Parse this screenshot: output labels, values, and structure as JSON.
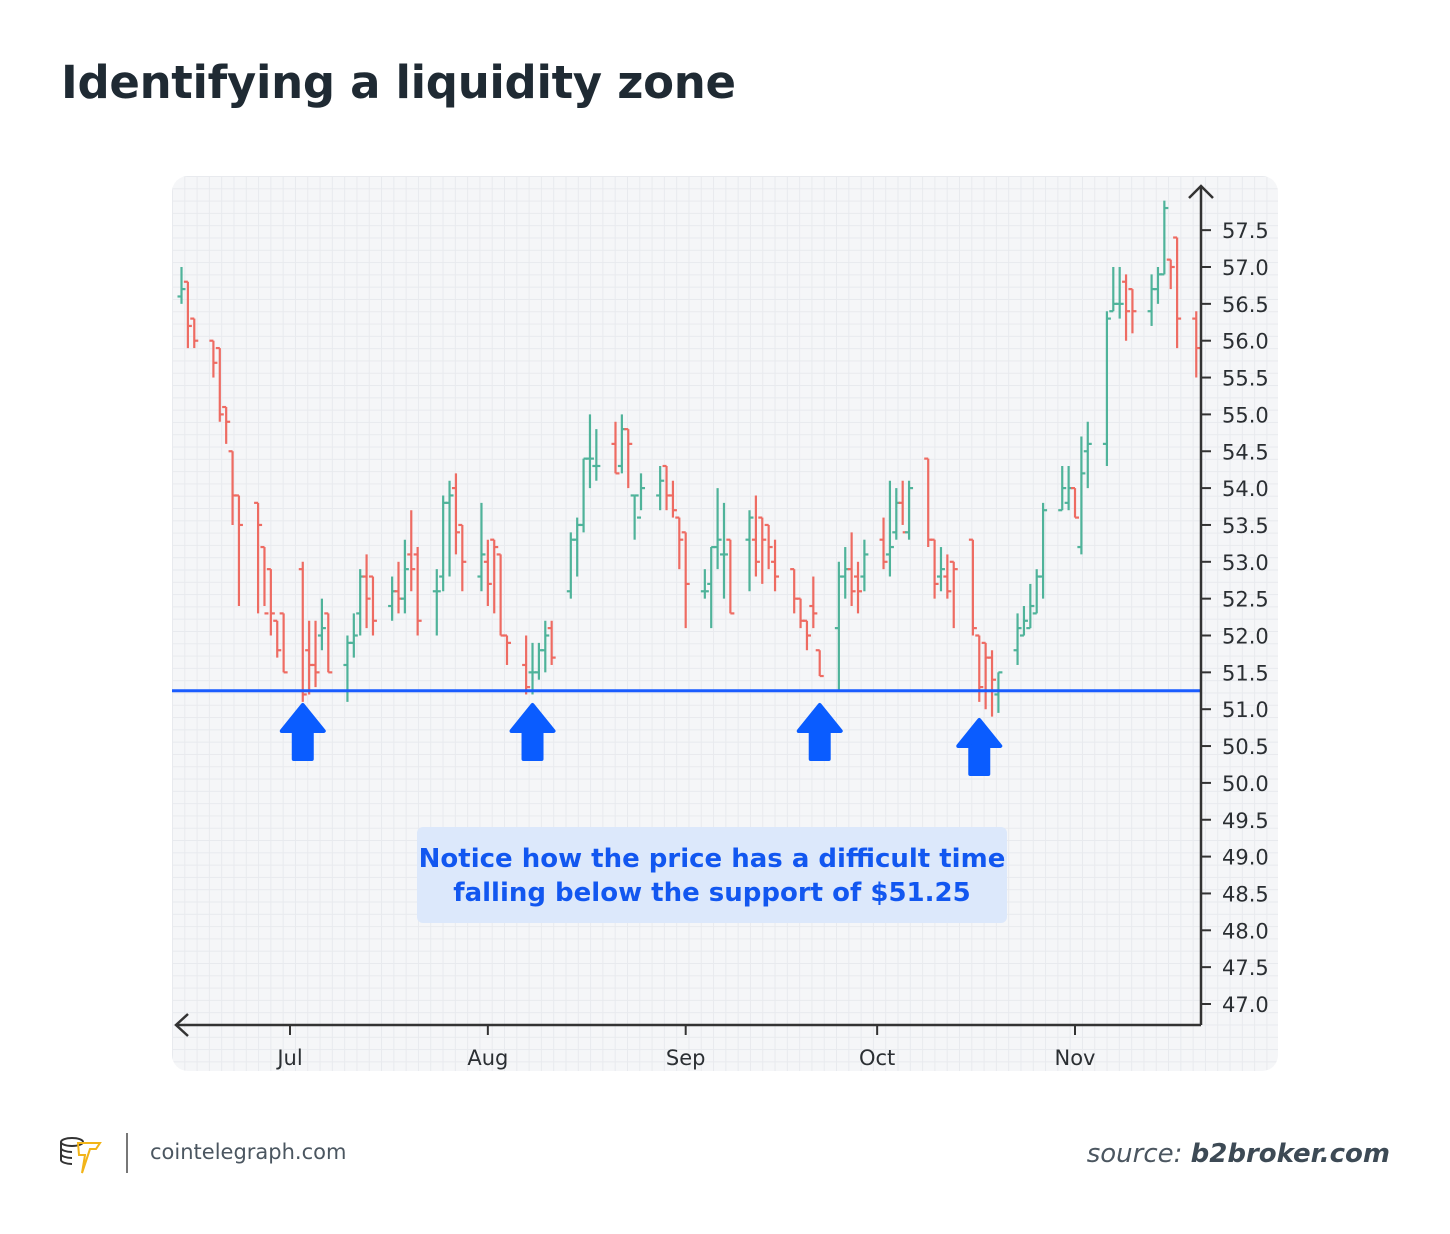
{
  "title": "Identifying a liquidity zone",
  "annotation": {
    "line1": "Notice how the price has a difficult time",
    "line2": "falling below the support of $51.25"
  },
  "footer": {
    "site": "cointelegraph.com",
    "source_label": "source:",
    "source_name": "b2broker.com"
  },
  "colors": {
    "up": "#4fb39a",
    "down": "#ee6b62",
    "support": "#1a5cff",
    "arrow": "#0a5cff",
    "note_bg": "#dce8fb"
  },
  "chart_data": {
    "type": "ohlc",
    "title": "",
    "ylim": [
      46.7,
      58.1
    ],
    "y_ticks": [
      "47.0",
      "47.5",
      "48.0",
      "48.5",
      "49.0",
      "49.5",
      "50.0",
      "50.5",
      "51.0",
      "51.5",
      "52.0",
      "52.5",
      "53.0",
      "53.5",
      "54.0",
      "54.5",
      "55.0",
      "55.5",
      "56.0",
      "56.5",
      "57.0",
      "57.5"
    ],
    "x_ticks": [
      {
        "label": "Jul",
        "date": "Jul 1"
      },
      {
        "label": "Aug",
        "date": "Aug 1"
      },
      {
        "label": "Sep",
        "date": "Sep 1"
      },
      {
        "label": "Oct",
        "date": "Oct 1"
      },
      {
        "label": "Nov",
        "date": "Nov 1"
      }
    ],
    "xlim": [
      "Jun 13",
      "Nov 21"
    ],
    "grid": true,
    "support_level": 51.25,
    "touch_points": [
      "Jul 3",
      "Aug 8",
      "Sep 22",
      "Oct 17"
    ],
    "bars": [
      [
        "Jun 14",
        56.6,
        57.0,
        56.5,
        56.7
      ],
      [
        "Jun 15",
        56.8,
        56.8,
        55.9,
        56.2
      ],
      [
        "Jun 16",
        56.3,
        56.3,
        55.9,
        56.0
      ],
      [
        "Jun 19",
        56.0,
        56.0,
        55.5,
        55.7
      ],
      [
        "Jun 20",
        55.9,
        55.9,
        54.9,
        55.0
      ],
      [
        "Jun 21",
        55.1,
        55.1,
        54.6,
        54.9
      ],
      [
        "Jun 22",
        54.5,
        54.5,
        53.5,
        53.9
      ],
      [
        "Jun 23",
        53.9,
        53.9,
        52.4,
        53.5
      ],
      [
        "Jun 26",
        53.8,
        53.8,
        52.3,
        53.5
      ],
      [
        "Jun 27",
        53.2,
        53.2,
        52.4,
        52.3
      ],
      [
        "Jun 28",
        52.9,
        52.9,
        52.0,
        52.3
      ],
      [
        "Jun 29",
        52.2,
        52.2,
        51.7,
        51.8
      ],
      [
        "Jun 30",
        52.3,
        52.3,
        51.5,
        51.5
      ],
      [
        "Jul 3",
        52.9,
        53.0,
        51.1,
        51.2
      ],
      [
        "Jul 4",
        51.8,
        52.2,
        51.2,
        51.6
      ],
      [
        "Jul 5",
        51.6,
        52.2,
        51.3,
        51.5
      ],
      [
        "Jul 6",
        52.0,
        52.5,
        51.8,
        52.1
      ],
      [
        "Jul 7",
        52.3,
        52.3,
        51.5,
        51.5
      ],
      [
        "Jul 10",
        51.6,
        52.0,
        51.1,
        51.9
      ],
      [
        "Jul 11",
        51.9,
        52.3,
        51.7,
        52.0
      ],
      [
        "Jul 12",
        52.3,
        52.9,
        52.0,
        52.8
      ],
      [
        "Jul 13",
        52.8,
        53.1,
        52.1,
        52.5
      ],
      [
        "Jul 14",
        52.8,
        52.8,
        52.0,
        52.2
      ],
      [
        "Jul 17",
        52.4,
        52.8,
        52.2,
        52.6
      ],
      [
        "Jul 18",
        52.6,
        53.0,
        52.3,
        52.5
      ],
      [
        "Jul 19",
        52.5,
        53.3,
        52.3,
        52.9
      ],
      [
        "Jul 20",
        53.1,
        53.7,
        52.6,
        52.9
      ],
      [
        "Jul 21",
        53.1,
        53.2,
        52.0,
        52.2
      ],
      [
        "Jul 24",
        52.6,
        52.9,
        52.0,
        52.6
      ],
      [
        "Jul 25",
        52.8,
        53.9,
        52.6,
        53.8
      ],
      [
        "Jul 26",
        53.8,
        54.1,
        52.8,
        53.9
      ],
      [
        "Jul 27",
        54.0,
        54.2,
        53.1,
        53.4
      ],
      [
        "Jul 28",
        53.5,
        53.5,
        52.6,
        53.0
      ],
      [
        "Jul 31",
        52.8,
        53.8,
        52.6,
        53.1
      ],
      [
        "Aug 1",
        53.0,
        53.3,
        52.4,
        52.7
      ],
      [
        "Aug 2",
        53.3,
        53.3,
        52.3,
        53.2
      ],
      [
        "Aug 3",
        53.1,
        53.1,
        52.0,
        52.0
      ],
      [
        "Aug 4",
        52.0,
        52.0,
        51.6,
        51.9
      ],
      [
        "Aug 7",
        51.6,
        52.0,
        51.2,
        51.3
      ],
      [
        "Aug 8",
        51.5,
        51.9,
        51.2,
        51.5
      ],
      [
        "Aug 9",
        51.5,
        51.9,
        51.4,
        51.8
      ],
      [
        "Aug 10",
        51.8,
        52.2,
        51.5,
        52.0
      ],
      [
        "Aug 11",
        52.1,
        52.2,
        51.6,
        51.7
      ],
      [
        "Aug 14",
        52.6,
        53.4,
        52.5,
        53.3
      ],
      [
        "Aug 15",
        53.3,
        53.6,
        52.8,
        53.5
      ],
      [
        "Aug 16",
        53.5,
        54.4,
        53.4,
        54.4
      ],
      [
        "Aug 17",
        54.4,
        55.0,
        54.0,
        54.4
      ],
      [
        "Aug 18",
        54.3,
        54.8,
        54.1,
        54.3
      ],
      [
        "Aug 21",
        54.6,
        54.9,
        54.2,
        54.2
      ],
      [
        "Aug 22",
        54.3,
        55.0,
        54.2,
        54.8
      ],
      [
        "Aug 23",
        54.8,
        54.8,
        54.0,
        54.6
      ],
      [
        "Aug 24",
        53.9,
        53.9,
        53.3,
        53.9
      ],
      [
        "Aug 25",
        53.6,
        54.2,
        53.7,
        54.0
      ],
      [
        "Aug 28",
        53.9,
        54.3,
        53.7,
        54.1
      ],
      [
        "Aug 29",
        54.3,
        54.3,
        53.7,
        53.9
      ],
      [
        "Aug 30",
        53.9,
        54.1,
        53.6,
        53.7
      ],
      [
        "Aug 31",
        53.6,
        53.6,
        52.9,
        53.3
      ],
      [
        "Sep 1",
        53.4,
        53.4,
        52.1,
        52.7
      ],
      [
        "Sep 4",
        52.6,
        52.9,
        52.5,
        52.6
      ],
      [
        "Sep 5",
        52.7,
        53.2,
        52.1,
        53.2
      ],
      [
        "Sep 6",
        53.2,
        54.0,
        52.9,
        53.3
      ],
      [
        "Sep 7",
        53.1,
        53.8,
        52.5,
        53.1
      ],
      [
        "Sep 8",
        53.3,
        53.3,
        52.3,
        52.3
      ],
      [
        "Sep 11",
        53.3,
        53.7,
        52.6,
        53.6
      ],
      [
        "Sep 12",
        53.3,
        53.9,
        52.8,
        53.0
      ],
      [
        "Sep 13",
        53.6,
        53.6,
        52.7,
        53.3
      ],
      [
        "Sep 14",
        53.5,
        53.5,
        52.9,
        53.2
      ],
      [
        "Sep 15",
        53.0,
        53.3,
        52.6,
        52.8
      ],
      [
        "Sep 18",
        52.9,
        52.9,
        52.3,
        52.5
      ],
      [
        "Sep 19",
        52.5,
        52.5,
        52.1,
        52.2
      ],
      [
        "Sep 20",
        52.2,
        52.2,
        51.8,
        52.0
      ],
      [
        "Sep 21",
        52.4,
        52.8,
        52.1,
        52.3
      ],
      [
        "Sep 22",
        51.8,
        51.8,
        51.45,
        51.45
      ],
      [
        "Sep 25",
        52.1,
        53.0,
        51.25,
        52.8
      ],
      [
        "Sep 26",
        52.8,
        53.2,
        52.5,
        52.9
      ],
      [
        "Sep 27",
        52.9,
        53.4,
        52.4,
        52.6
      ],
      [
        "Sep 28",
        52.8,
        53.0,
        52.3,
        52.6
      ],
      [
        "Sep 29",
        52.8,
        53.3,
        52.6,
        53.1
      ],
      [
        "Oct 2",
        53.3,
        53.6,
        52.9,
        53.0
      ],
      [
        "Oct 3",
        53.1,
        54.1,
        52.8,
        53.2
      ],
      [
        "Oct 4",
        53.4,
        54.0,
        53.3,
        53.8
      ],
      [
        "Oct 5",
        53.8,
        54.1,
        53.5,
        53.4
      ],
      [
        "Oct 6",
        53.4,
        54.1,
        53.3,
        54.0
      ],
      [
        "Oct 9",
        54.4,
        54.4,
        53.2,
        53.3
      ],
      [
        "Oct 10",
        53.3,
        53.3,
        52.5,
        52.7
      ],
      [
        "Oct 11",
        52.8,
        53.2,
        52.6,
        52.9
      ],
      [
        "Oct 12",
        52.8,
        53.1,
        52.5,
        52.6
      ],
      [
        "Oct 13",
        53.0,
        53.0,
        52.1,
        52.9
      ],
      [
        "Oct 16",
        53.3,
        53.3,
        52.0,
        52.1
      ],
      [
        "Oct 17",
        52.0,
        52.0,
        51.1,
        51.3
      ],
      [
        "Oct 18",
        51.9,
        51.9,
        51.0,
        51.7
      ],
      [
        "Oct 19",
        51.7,
        51.8,
        50.9,
        51.4
      ],
      [
        "Oct 20",
        51.2,
        51.5,
        50.95,
        51.5
      ],
      [
        "Oct 23",
        51.8,
        52.3,
        51.6,
        52.1
      ],
      [
        "Oct 24",
        52.0,
        52.4,
        52.0,
        52.2
      ],
      [
        "Oct 25",
        52.1,
        52.7,
        52.1,
        52.4
      ],
      [
        "Oct 26",
        52.3,
        52.9,
        52.3,
        52.8
      ],
      [
        "Oct 27",
        52.8,
        53.8,
        52.5,
        53.7
      ],
      [
        "Oct 30",
        53.7,
        54.3,
        53.7,
        54.0
      ],
      [
        "Oct 31",
        53.8,
        54.3,
        53.7,
        54.0
      ],
      [
        "Nov 1",
        54.0,
        54.0,
        53.6,
        53.6
      ],
      [
        "Nov 2",
        53.2,
        54.7,
        53.1,
        54.2
      ],
      [
        "Nov 3",
        54.5,
        54.9,
        54.0,
        54.6
      ],
      [
        "Nov 6",
        54.6,
        56.4,
        54.3,
        56.3
      ],
      [
        "Nov 7",
        56.4,
        57.0,
        56.4,
        56.5
      ],
      [
        "Nov 8",
        56.5,
        57.0,
        56.3,
        56.5
      ],
      [
        "Nov 9",
        56.8,
        56.9,
        56.0,
        56.4
      ],
      [
        "Nov 10",
        56.7,
        56.7,
        56.1,
        56.4
      ],
      [
        "Nov 13",
        56.4,
        56.9,
        56.2,
        56.7
      ],
      [
        "Nov 14",
        56.7,
        57.0,
        56.5,
        56.9
      ],
      [
        "Nov 15",
        56.9,
        57.9,
        56.9,
        57.8
      ],
      [
        "Nov 16",
        57.1,
        57.1,
        56.7,
        57.0
      ],
      [
        "Nov 17",
        57.4,
        57.4,
        55.9,
        56.3
      ],
      [
        "Nov 20",
        56.3,
        56.4,
        55.5,
        55.9
      ]
    ]
  }
}
